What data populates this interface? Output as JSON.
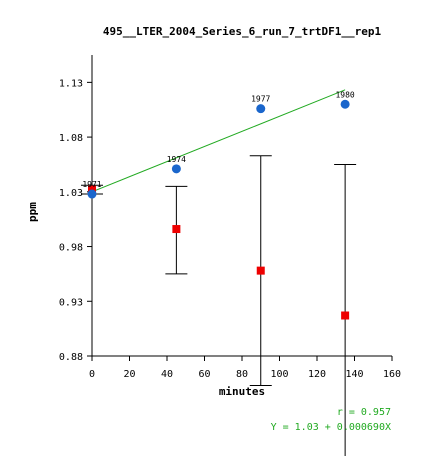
{
  "chart_data": {
    "type": "scatter",
    "title": "495__LTER_2004_Series_6_run_7_trtDF1__rep1",
    "xlabel": "minutes",
    "ylabel": "ppm",
    "xlim": [
      0,
      160
    ],
    "ylim": [
      0.88,
      1.155
    ],
    "x_ticks": [
      0,
      20,
      40,
      60,
      80,
      100,
      120,
      140,
      160
    ],
    "y_ticks": [
      0.88,
      0.93,
      0.98,
      1.03,
      1.08,
      1.13
    ],
    "y_tick_labels": [
      "0.88",
      "0.93",
      "0.98",
      "1.03",
      "1.08",
      "1.13"
    ],
    "colors": {
      "points": "#1a66cc",
      "means": "#ee0000",
      "fit": "#22aa22",
      "stats": "#22aa22"
    },
    "points": [
      {
        "x": 0,
        "y": 1.028,
        "label": "1971"
      },
      {
        "x": 45,
        "y": 1.051,
        "label": "1974"
      },
      {
        "x": 90,
        "y": 1.106,
        "label": "1977"
      },
      {
        "x": 135,
        "y": 1.11,
        "label": "1980"
      }
    ],
    "means": [
      {
        "x": 0,
        "y": 1.032
      },
      {
        "x": 45,
        "y": 0.996
      },
      {
        "x": 90,
        "y": 0.958
      },
      {
        "x": 135,
        "y": 0.917
      }
    ],
    "error_bars": [
      {
        "x": 0,
        "low": 1.028,
        "high": 1.036
      },
      {
        "x": 45,
        "low": 0.955,
        "high": 1.035
      },
      {
        "x": 90,
        "low": 0.853,
        "high": 1.063
      },
      {
        "x": 135,
        "low": 0.77,
        "high": 1.055
      }
    ],
    "fit": {
      "x": [
        0,
        135
      ],
      "y": [
        1.03,
        1.1232
      ]
    },
    "stats": {
      "r": "r = 0.957",
      "equation": "Y = 1.03 + 0.000690X"
    }
  }
}
